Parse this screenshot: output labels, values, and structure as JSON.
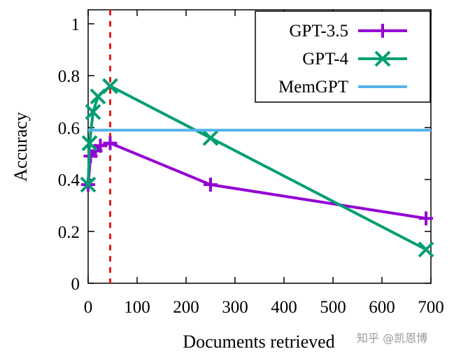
{
  "chart_data": {
    "type": "line",
    "xlabel": "Documents retrieved",
    "ylabel": "Accuracy",
    "xlim": [
      0,
      700
    ],
    "ylim": [
      0,
      1.05
    ],
    "xticks": [
      0,
      100,
      200,
      300,
      400,
      500,
      600,
      700
    ],
    "yticks": [
      0,
      0.2,
      0.4,
      0.6,
      0.8,
      1
    ],
    "ytick_labels": [
      "0",
      "0.2",
      "0.4",
      "0.6",
      "0.8",
      "1"
    ],
    "legend_position": "top-right",
    "vline": {
      "x": 45,
      "color": "#e41a1c",
      "style": "dashed"
    },
    "series": [
      {
        "name": "GPT-3.5",
        "color": "#9400d3",
        "marker": "plus",
        "x": [
          0,
          5,
          15,
          25,
          45,
          250,
          690
        ],
        "y": [
          0.38,
          0.49,
          0.51,
          0.53,
          0.54,
          0.38,
          0.25
        ]
      },
      {
        "name": "GPT-4",
        "color": "#009e73",
        "marker": "x",
        "x": [
          0,
          3,
          10,
          20,
          45,
          250,
          690
        ],
        "y": [
          0.38,
          0.54,
          0.66,
          0.72,
          0.76,
          0.56,
          0.13
        ]
      },
      {
        "name": "MemGPT",
        "color": "#56b4e9",
        "marker": "none",
        "x": [
          0,
          700
        ],
        "y": [
          0.59,
          0.59
        ]
      }
    ]
  },
  "watermark": "知乎 @凯恩博"
}
